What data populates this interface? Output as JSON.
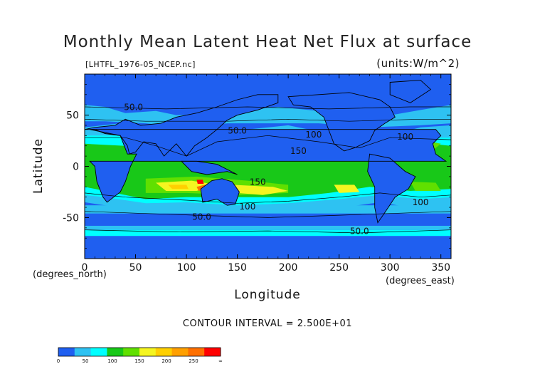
{
  "chart_data": {
    "type": "heatmap",
    "title": "Monthly Mean Latent Heat Net Flux at surface",
    "file_label": "[LHTFL_1976-05_NCEP.nc]",
    "units_label": "(units:W/m^2)",
    "xlabel": "Longitude",
    "ylabel": "Latitude",
    "x_units_label": "(degrees_east)",
    "y_units_label": "(degrees_north)",
    "xlim": [
      0,
      360
    ],
    "ylim": [
      -90,
      90
    ],
    "x_ticks": [
      0,
      50,
      100,
      150,
      200,
      250,
      300,
      350
    ],
    "y_ticks": [
      -50,
      0,
      50
    ],
    "contour_interval_text": "CONTOUR INTERVAL = 2.500E+01",
    "contour_labels": [
      {
        "text": "50.0",
        "lon": 48,
        "lat": 55
      },
      {
        "text": "50.0",
        "lon": 150,
        "lat": 32
      },
      {
        "text": "100",
        "lon": 225,
        "lat": 28
      },
      {
        "text": "150",
        "lon": 210,
        "lat": 12
      },
      {
        "text": "100",
        "lon": 315,
        "lat": 26
      },
      {
        "text": "150",
        "lon": 170,
        "lat": -18
      },
      {
        "text": "100",
        "lon": 160,
        "lat": -42
      },
      {
        "text": "50.0",
        "lon": 115,
        "lat": -52
      },
      {
        "text": "100",
        "lon": 330,
        "lat": -38
      },
      {
        "text": "50.0",
        "lon": 270,
        "lat": -66
      }
    ],
    "colorbar": {
      "levels": [
        "0",
        "50",
        "100",
        "150",
        "200",
        "250",
        "∞"
      ],
      "colors": [
        "#1f5ff0",
        "#2ec2f2",
        "#00ffff",
        "#18c818",
        "#60e000",
        "#f5f520",
        "#ffd000",
        "#ffa000",
        "#ff7000",
        "#ff0000"
      ]
    },
    "fill_colors": {
      "level_0_25": "#1f5ff0",
      "level_25_50": "#2ec2f2",
      "level_50_75": "#00ffff",
      "level_100_125": "#18c818",
      "level_125_150": "#60e000",
      "level_150_175": "#f5f520",
      "level_175_200": "#ffd000",
      "level_200_225": "#ffa000",
      "level_225_250": "#ff7000",
      "level_250_inf": "#ff0000"
    }
  }
}
